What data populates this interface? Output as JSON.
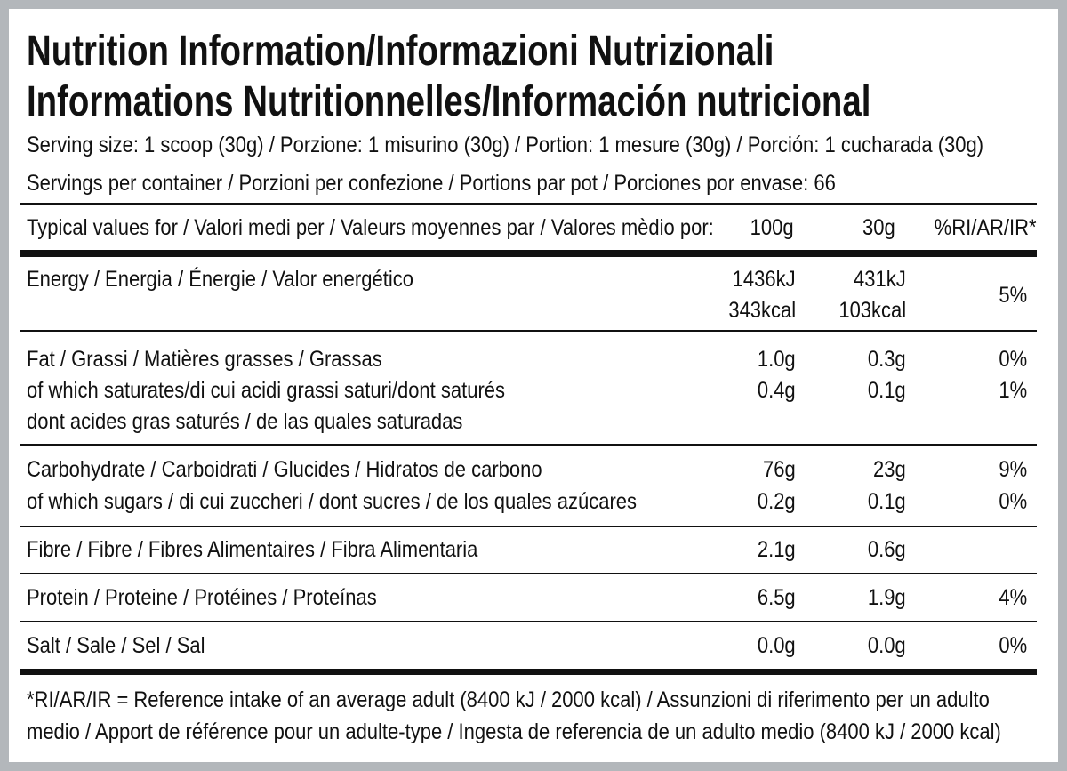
{
  "title": [
    "Nutrition Information/Informazioni Nutrizionali",
    "Informations Nutritionnelles/Información nutricional"
  ],
  "serving_size": "Serving size: 1 scoop (30g) / Porzione: 1 misurino (30g) / Portion: 1 mesure (30g) / Porción: 1 cucharada (30g)",
  "servings_per_container": "Servings per container / Porzioni per confezione / Portions par pot / Porciones por envase: 66",
  "table": {
    "header": {
      "label": "Typical values for / Valori medi per / Valeurs moyennes par / Valores mèdio por:",
      "g100": "100g",
      "g30": "30g",
      "ri": "%RI/AR/IR*"
    },
    "groups": [
      {
        "rows": [
          {
            "label": "Energy / Energia / Énergie / Valor energético",
            "g100": "1436kJ",
            "g30": "431kJ"
          },
          {
            "g100": "343kcal",
            "g30": "103kcal"
          }
        ],
        "ri": "5%"
      },
      {
        "rows": [
          {
            "label": "Fat / Grassi / Matières grasses / Grassas",
            "g100": "1.0g",
            "g30": "0.3g",
            "ri": "0%"
          },
          {
            "label": "of which saturates/di cui acidi grassi saturi/dont saturés",
            "g100": "0.4g",
            "g30": "0.1g",
            "ri": "1%"
          },
          {
            "label": "dont acides gras saturés / de las quales saturadas"
          }
        ]
      },
      {
        "rows": [
          {
            "label": "Carbohydrate / Carboidrati / Glucides / Hidratos de carbono",
            "g100": "76g",
            "g30": "23g",
            "ri": "9%"
          },
          {
            "label": "of which sugars / di cui zuccheri / dont sucres / de los quales azúcares",
            "g100": "0.2g",
            "g30": "0.1g",
            "ri": "0%"
          }
        ]
      },
      {
        "rows": [
          {
            "label": "Fibre / Fibre / Fibres Alimentaires / Fibra Alimentaria",
            "g100": "2.1g",
            "g30": "0.6g"
          }
        ]
      },
      {
        "rows": [
          {
            "label": "Protein / Proteine / Protéines / Proteínas",
            "g100": "6.5g",
            "g30": "1.9g",
            "ri": "4%"
          }
        ]
      },
      {
        "rows": [
          {
            "label": "Salt / Sale / Sel / Sal",
            "g100": "0.0g",
            "g30": "0.0g",
            "ri": "0%"
          }
        ]
      }
    ]
  },
  "footnote": [
    "*RI/AR/IR = Reference intake of an average adult (8400 kJ / 2000 kcal)  / Assunzioni di riferimento per un adulto",
    "medio / Apport de référence pour un adulte-type / Ingesta de referencia de un adulto medio (8400 kJ / 2000 kcal)"
  ]
}
